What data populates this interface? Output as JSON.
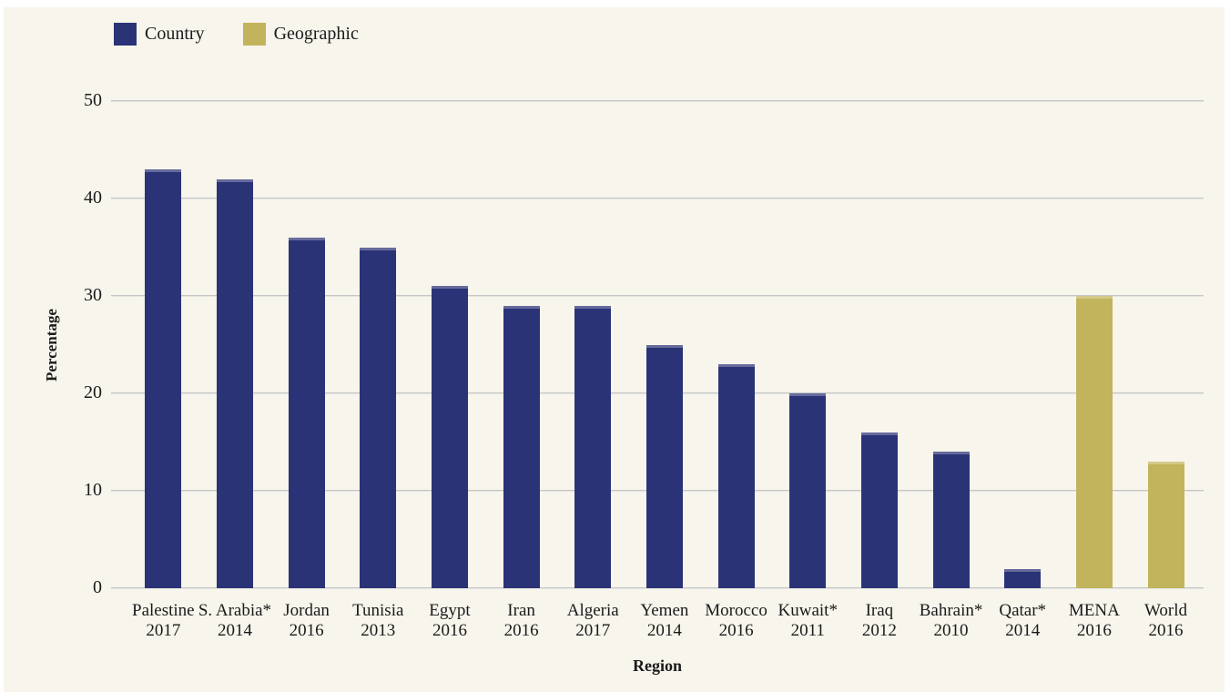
{
  "legend": {
    "items": [
      {
        "label": "Country",
        "color": "#2b3377"
      },
      {
        "label": "Geographic",
        "color": "#c2b45c"
      }
    ]
  },
  "chart_data": {
    "type": "bar",
    "title": "",
    "xlabel": "Region",
    "ylabel": "Percentage",
    "ylim": [
      0,
      50
    ],
    "yticks": [
      0,
      10,
      20,
      30,
      40,
      50
    ],
    "grid": true,
    "legend_position": "top-left",
    "background_color": "#f7f5ec",
    "gridline_color": "#c5c7c7",
    "series": [
      {
        "name": "Country",
        "color": "#2b3377"
      },
      {
        "name": "Geographic",
        "color": "#c2b45c"
      }
    ],
    "bars": [
      {
        "label": "Palestine",
        "year": "2017",
        "value": 43,
        "series": "Country"
      },
      {
        "label": "S. Arabia*",
        "year": "2014",
        "value": 42,
        "series": "Country"
      },
      {
        "label": "Jordan",
        "year": "2016",
        "value": 36,
        "series": "Country"
      },
      {
        "label": "Tunisia",
        "year": "2013",
        "value": 35,
        "series": "Country"
      },
      {
        "label": "Egypt",
        "year": "2016",
        "value": 31,
        "series": "Country"
      },
      {
        "label": "Iran",
        "year": "2016",
        "value": 29,
        "series": "Country"
      },
      {
        "label": "Algeria",
        "year": "2017",
        "value": 29,
        "series": "Country"
      },
      {
        "label": "Yemen",
        "year": "2014",
        "value": 25,
        "series": "Country"
      },
      {
        "label": "Morocco",
        "year": "2016",
        "value": 23,
        "series": "Country"
      },
      {
        "label": "Kuwait*",
        "year": "2011",
        "value": 20,
        "series": "Country"
      },
      {
        "label": "Iraq",
        "year": "2012",
        "value": 16,
        "series": "Country"
      },
      {
        "label": "Bahrain*",
        "year": "2010",
        "value": 14,
        "series": "Country"
      },
      {
        "label": "Qatar*",
        "year": "2014",
        "value": 2,
        "series": "Country"
      },
      {
        "label": "MENA",
        "year": "2016",
        "value": 30,
        "series": "Geographic"
      },
      {
        "label": "World",
        "year": "2016",
        "value": 13,
        "series": "Geographic"
      }
    ]
  }
}
